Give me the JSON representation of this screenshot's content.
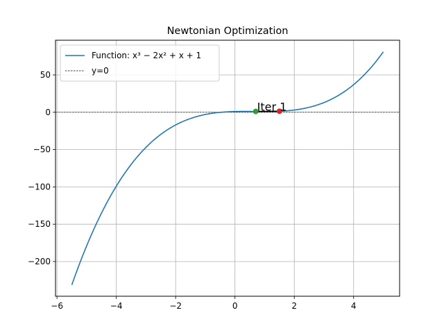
{
  "chart_data": {
    "type": "line",
    "title": "Newtonian Optimization",
    "xlabel": "",
    "ylabel": "",
    "xlim": [
      -6.05,
      5.55
    ],
    "ylim": [
      -246.5,
      96.5
    ],
    "xticks": [
      -6,
      -4,
      -2,
      0,
      2,
      4
    ],
    "xtick_labels": [
      "−6",
      "−4",
      "−2",
      "0",
      "2",
      "4"
    ],
    "yticks": [
      -200,
      -150,
      -100,
      -50,
      0,
      50
    ],
    "ytick_labels": [
      "−200",
      "−150",
      "−100",
      "−50",
      "0",
      "50"
    ],
    "grid": true,
    "legend_position": "top-left",
    "series": [
      {
        "name": "Function: x³ − 2x² + x + 1",
        "function": "x^3 - 2x^2 + x + 1",
        "coefficients": [
          1,
          -2,
          1,
          1
        ],
        "x_range": [
          -5.5,
          5.0
        ],
        "color": "#1f77b4",
        "style": "solid"
      },
      {
        "name": "y=0",
        "y": 0,
        "color": "#000000",
        "style": "dashed"
      }
    ],
    "points": [
      {
        "x": 1.5,
        "y": 1.375,
        "color": "#d62728"
      },
      {
        "x": 0.7,
        "y": 1.063,
        "color": "#2ca02c"
      }
    ],
    "step_segment": {
      "x": [
        1.5,
        0.7
      ],
      "y": [
        1.375,
        1.063
      ],
      "color": "#000000"
    },
    "annotation": {
      "text": "Iter 1",
      "x": 0.7,
      "y": 1.063
    }
  }
}
